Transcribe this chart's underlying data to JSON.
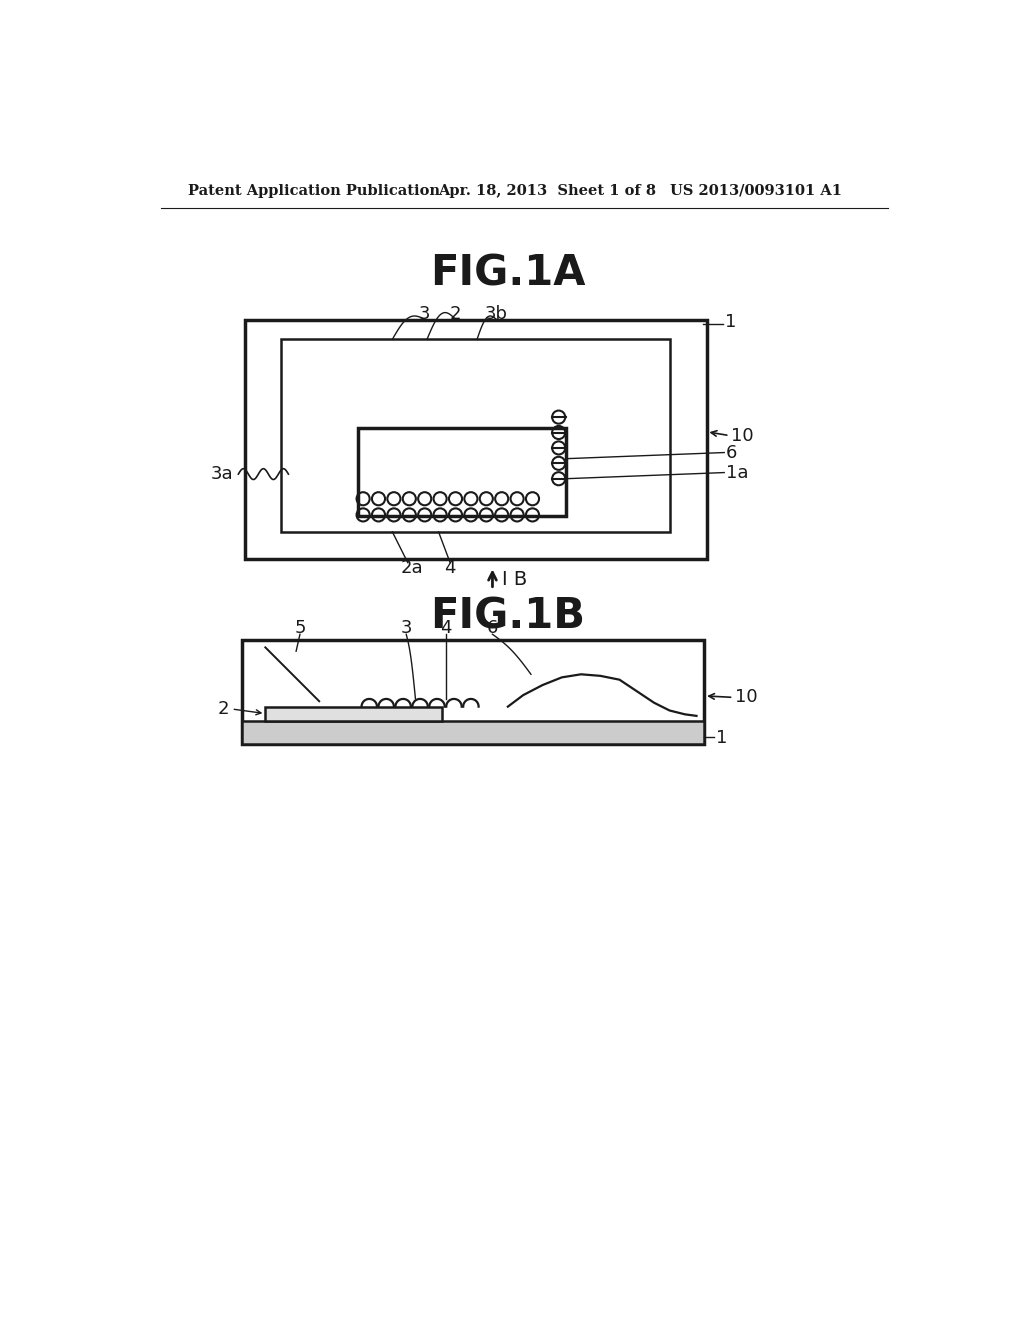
{
  "bg_color": "#ffffff",
  "line_color": "#1a1a1a",
  "header_left": "Patent Application Publication",
  "header_center": "Apr. 18, 2013  Sheet 1 of 8",
  "header_right": "US 2013/0093101 A1",
  "fig1a_title": "FIG.1A",
  "fig1b_title": "FIG.1B",
  "arrow_label": "I B"
}
